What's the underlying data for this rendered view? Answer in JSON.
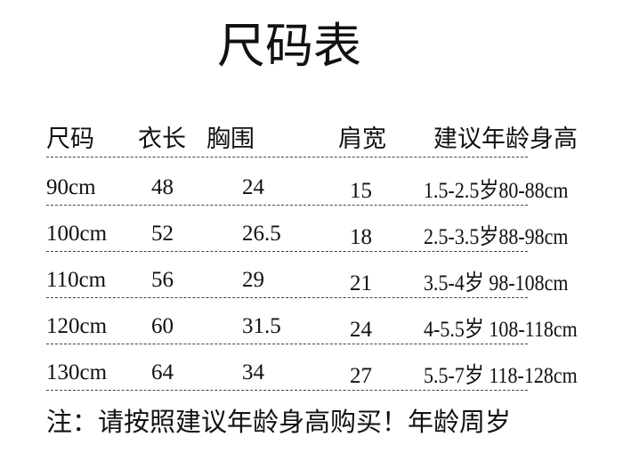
{
  "title": "尺码表",
  "headers": [
    "尺码",
    "衣长",
    "胸围",
    "肩宽",
    "建议年龄身高"
  ],
  "rows": [
    [
      "90cm",
      "48",
      "24",
      "15",
      "1.5-2.5岁80-88cm"
    ],
    [
      "100cm",
      "52",
      "26.5",
      "18",
      "2.5-3.5岁88-98cm"
    ],
    [
      "110cm",
      "56",
      "29",
      "21",
      "3.5-4岁 98-108cm"
    ],
    [
      "120cm",
      "60",
      "31.5",
      "24",
      "4-5.5岁 108-118cm"
    ],
    [
      "130cm",
      "64",
      "34",
      "27",
      "5.5-7岁 118-128cm"
    ]
  ],
  "note": "注：请按照建议年龄身高购买！年龄周岁"
}
